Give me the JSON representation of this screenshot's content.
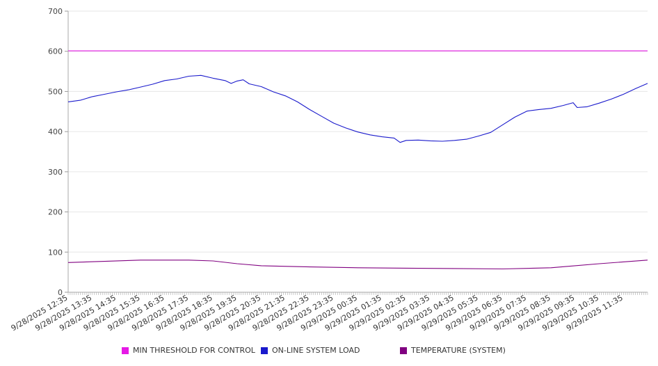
{
  "chart_data": {
    "type": "line",
    "ylim": [
      0,
      700
    ],
    "yticks": [
      0,
      100,
      200,
      300,
      400,
      500,
      600,
      700
    ],
    "grid": true,
    "legend_position": "bottom",
    "x_ticks": [
      "9/28/2025 12:35",
      "9/28/2025 13:35",
      "9/28/2025 14:35",
      "9/28/2025 15:35",
      "9/28/2025 16:35",
      "9/28/2025 17:35",
      "9/28/2025 18:35",
      "9/28/2025 19:35",
      "9/28/2025 20:35",
      "9/28/2025 21:35",
      "9/28/2025 22:35",
      "9/28/2025 23:35",
      "9/29/2025 00:35",
      "9/29/2025 01:35",
      "9/29/2025 02:35",
      "9/29/2025 03:35",
      "9/29/2025 04:35",
      "9/29/2025 05:35",
      "9/29/2025 06:35",
      "9/29/2025 07:35",
      "9/29/2025 08:35",
      "9/29/2025 09:35",
      "9/29/2025 10:35",
      "9/29/2025 11:35"
    ],
    "x_range": [
      "9/28/2025 12:35",
      "9/29/2025 12:35"
    ],
    "series": [
      {
        "name": "MIN THRESHOLD FOR CONTROL",
        "color": "#e619e6",
        "points": [
          [
            "9/28/2025 12:35",
            601
          ],
          [
            "9/29/2025 12:35",
            601
          ]
        ]
      },
      {
        "name": "ON-LINE SYSTEM LOAD",
        "color": "#1a1acc",
        "points": [
          [
            "9/28/2025 12:35",
            474
          ],
          [
            "9/28/2025 13:05",
            478
          ],
          [
            "9/28/2025 13:35",
            487
          ],
          [
            "9/28/2025 14:05",
            493
          ],
          [
            "9/28/2025 14:35",
            499
          ],
          [
            "9/28/2025 15:05",
            504
          ],
          [
            "9/28/2025 15:35",
            511
          ],
          [
            "9/28/2025 16:05",
            518
          ],
          [
            "9/28/2025 16:35",
            527
          ],
          [
            "9/28/2025 17:05",
            531
          ],
          [
            "9/28/2025 17:35",
            538
          ],
          [
            "9/28/2025 18:05",
            540
          ],
          [
            "9/28/2025 18:35",
            533
          ],
          [
            "9/28/2025 19:05",
            527
          ],
          [
            "9/28/2025 19:20",
            520
          ],
          [
            "9/28/2025 19:35",
            526
          ],
          [
            "9/28/2025 19:50",
            529
          ],
          [
            "9/28/2025 20:05",
            519
          ],
          [
            "9/28/2025 20:35",
            512
          ],
          [
            "9/28/2025 21:05",
            499
          ],
          [
            "9/28/2025 21:35",
            489
          ],
          [
            "9/28/2025 22:05",
            474
          ],
          [
            "9/28/2025 22:35",
            455
          ],
          [
            "9/28/2025 23:05",
            438
          ],
          [
            "9/28/2025 23:35",
            421
          ],
          [
            "9/29/2025 00:05",
            409
          ],
          [
            "9/29/2025 00:35",
            399
          ],
          [
            "9/29/2025 01:05",
            392
          ],
          [
            "9/29/2025 01:35",
            387
          ],
          [
            "9/29/2025 02:05",
            384
          ],
          [
            "9/29/2025 02:20",
            373
          ],
          [
            "9/29/2025 02:35",
            378
          ],
          [
            "9/29/2025 03:05",
            379
          ],
          [
            "9/29/2025 03:35",
            377
          ],
          [
            "9/29/2025 04:05",
            376
          ],
          [
            "9/29/2025 04:35",
            378
          ],
          [
            "9/29/2025 05:05",
            381
          ],
          [
            "9/29/2025 05:35",
            389
          ],
          [
            "9/29/2025 06:05",
            398
          ],
          [
            "9/29/2025 06:35",
            417
          ],
          [
            "9/29/2025 07:05",
            436
          ],
          [
            "9/29/2025 07:35",
            451
          ],
          [
            "9/29/2025 08:05",
            455
          ],
          [
            "9/29/2025 08:35",
            458
          ],
          [
            "9/29/2025 09:05",
            465
          ],
          [
            "9/29/2025 09:30",
            472
          ],
          [
            "9/29/2025 09:40",
            460
          ],
          [
            "9/29/2025 10:05",
            462
          ],
          [
            "9/29/2025 10:35",
            471
          ],
          [
            "9/29/2025 11:05",
            481
          ],
          [
            "9/29/2025 11:35",
            493
          ],
          [
            "9/29/2025 12:05",
            507
          ],
          [
            "9/29/2025 12:35",
            520
          ]
        ]
      },
      {
        "name": "TEMPERATURE (SYSTEM)",
        "color": "#800080",
        "points": [
          [
            "9/28/2025 12:35",
            74
          ],
          [
            "9/28/2025 14:05",
            77
          ],
          [
            "9/28/2025 15:35",
            80
          ],
          [
            "9/28/2025 17:35",
            80
          ],
          [
            "9/28/2025 18:35",
            78
          ],
          [
            "9/28/2025 19:35",
            71
          ],
          [
            "9/28/2025 20:35",
            66
          ],
          [
            "9/28/2025 22:35",
            63
          ],
          [
            "9/29/2025 00:35",
            61
          ],
          [
            "9/29/2025 02:35",
            60
          ],
          [
            "9/29/2025 04:35",
            59
          ],
          [
            "9/29/2025 06:35",
            58
          ],
          [
            "9/29/2025 08:35",
            61
          ],
          [
            "9/29/2025 10:35",
            71
          ],
          [
            "9/29/2025 12:35",
            80
          ]
        ]
      }
    ]
  }
}
